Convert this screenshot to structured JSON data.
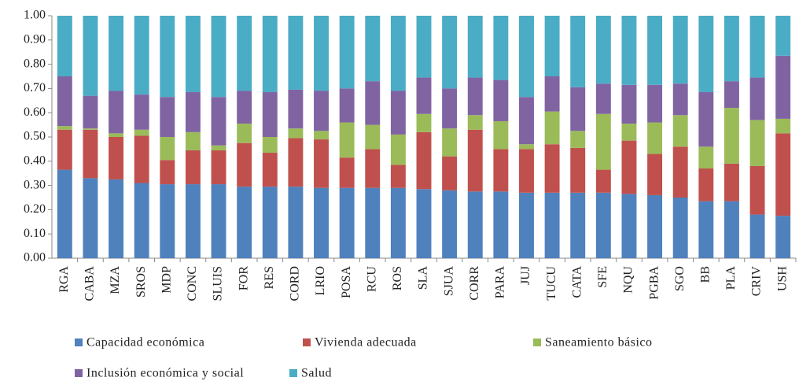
{
  "chart_data": {
    "type": "stacked_bar",
    "categories": [
      "RGA",
      "CABA",
      "MZA",
      "SROS",
      "MDP",
      "CONC",
      "SLUIS",
      "FOR",
      "RES",
      "CORD",
      "LRIO",
      "POSA",
      "RCU",
      "ROS",
      "SLA",
      "SJUA",
      "CORR",
      "PARA",
      "JUJ",
      "TUCU",
      "CATA",
      "SFE",
      "NQU",
      "PGBA",
      "SGO",
      "BB",
      "PLA",
      "CRIV",
      "USH"
    ],
    "series": [
      {
        "name": "Capacidad económica",
        "color": "#4f81bd",
        "values": [
          0.365,
          0.33,
          0.325,
          0.31,
          0.305,
          0.305,
          0.305,
          0.295,
          0.295,
          0.295,
          0.29,
          0.29,
          0.29,
          0.29,
          0.285,
          0.28,
          0.275,
          0.275,
          0.27,
          0.27,
          0.27,
          0.27,
          0.265,
          0.26,
          0.25,
          0.235,
          0.235,
          0.18,
          0.175
        ]
      },
      {
        "name": "Vivienda adecuada",
        "color": "#c0504d",
        "values": [
          0.165,
          0.2,
          0.175,
          0.195,
          0.1,
          0.14,
          0.14,
          0.18,
          0.14,
          0.2,
          0.2,
          0.125,
          0.16,
          0.095,
          0.235,
          0.14,
          0.255,
          0.175,
          0.18,
          0.2,
          0.185,
          0.095,
          0.22,
          0.17,
          0.21,
          0.135,
          0.155,
          0.2,
          0.34
        ]
      },
      {
        "name": "Saneamiento básico",
        "color": "#9bbb59",
        "values": [
          0.015,
          0.005,
          0.015,
          0.025,
          0.095,
          0.075,
          0.02,
          0.08,
          0.065,
          0.04,
          0.035,
          0.145,
          0.1,
          0.125,
          0.075,
          0.115,
          0.06,
          0.115,
          0.02,
          0.135,
          0.07,
          0.23,
          0.07,
          0.13,
          0.13,
          0.09,
          0.23,
          0.19,
          0.06
        ]
      },
      {
        "name": "Inclusión económica y social",
        "color": "#8064a2",
        "values": [
          0.205,
          0.135,
          0.175,
          0.145,
          0.165,
          0.165,
          0.2,
          0.135,
          0.185,
          0.16,
          0.165,
          0.14,
          0.18,
          0.18,
          0.15,
          0.165,
          0.155,
          0.17,
          0.195,
          0.145,
          0.18,
          0.125,
          0.16,
          0.155,
          0.13,
          0.225,
          0.11,
          0.175,
          0.26
        ]
      },
      {
        "name": "Salud",
        "color": "#4bacc6",
        "values": [
          0.25,
          0.33,
          0.31,
          0.325,
          0.335,
          0.315,
          0.335,
          0.31,
          0.315,
          0.305,
          0.31,
          0.3,
          0.27,
          0.31,
          0.255,
          0.3,
          0.255,
          0.265,
          0.335,
          0.25,
          0.295,
          0.28,
          0.285,
          0.285,
          0.28,
          0.315,
          0.27,
          0.255,
          0.165
        ]
      }
    ],
    "ylim": [
      0,
      1
    ],
    "yticks": [
      {
        "value": 0,
        "label": "0.00"
      },
      {
        "value": 0.1,
        "label": "0.10"
      },
      {
        "value": 0.2,
        "label": "0.20"
      },
      {
        "value": 0.3,
        "label": "0.30"
      },
      {
        "value": 0.4,
        "label": "0.40"
      },
      {
        "value": 0.5,
        "label": "0.50"
      },
      {
        "value": 0.6,
        "label": "0.60"
      },
      {
        "value": 0.7,
        "label": "0.70"
      },
      {
        "value": 0.8,
        "label": "0.80"
      },
      {
        "value": 0.9,
        "label": "0.90"
      },
      {
        "value": 1,
        "label": "1.00"
      }
    ],
    "legend": "bottom"
  }
}
